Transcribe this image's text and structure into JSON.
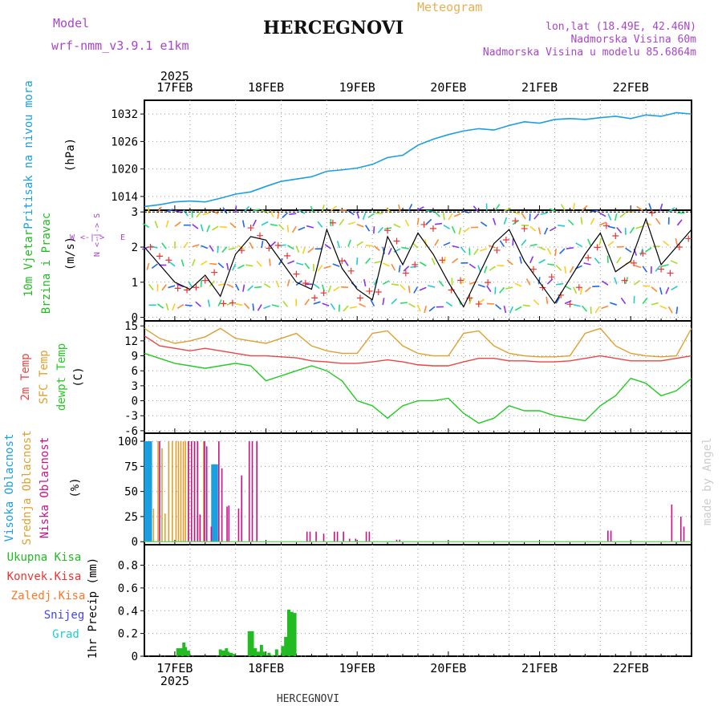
{
  "header": {
    "model_label": "Model",
    "model_name": "wrf-nmm_v3.9.1 e1km",
    "title": "HERCEGNOVI",
    "meteogram_label": "Meteogram",
    "coords": "lon,lat (18.49E, 42.46N)",
    "altitude": "Nadmorska Visina 60m",
    "model_altitude": "Nadmorska Visina u modelu 85.6864m",
    "footer": "HERCEGNOVI",
    "watermark": "made by Angel"
  },
  "colors": {
    "pressure": "#1a9fe0",
    "t2m": "#ee4444",
    "sfc": "#e0a030",
    "dewpt": "#22cc22",
    "high_cloud": "#1a9fe0",
    "mid_cloud": "#e0a030",
    "low_cloud": "#cc1188",
    "total_precip": "#22bb22",
    "conv_precip": "#ee3333",
    "frozen_precip": "#ff7722",
    "snow": "#4444ee",
    "hail": "#22cccc",
    "model_purple": "#aa44cc",
    "meteogram_orange": "#e8b050"
  },
  "chart_data": [
    {
      "id": "pressure",
      "type": "line",
      "ylabel_name": "Pritisak na nivou mora",
      "ylabel_unit": "(hPa)",
      "yticks": [
        1014,
        1020,
        1026,
        1032
      ],
      "ylim": [
        1011,
        1035
      ],
      "x": [
        0,
        0.5,
        1,
        1.5,
        2,
        2.5,
        3,
        3.5,
        4,
        4.5,
        5,
        5.5,
        6,
        6.5,
        7,
        7.5,
        8,
        8.5,
        9,
        9.5,
        10,
        10.5,
        11,
        11.5,
        12,
        12.5,
        13,
        13.5,
        14,
        14.5,
        15,
        15.5,
        16,
        16.5,
        17,
        17.5,
        18
      ],
      "values": [
        1011.8,
        1012.2,
        1012.8,
        1013.0,
        1012.8,
        1013.6,
        1014.5,
        1015.0,
        1016.2,
        1017.3,
        1017.8,
        1018.3,
        1019.5,
        1019.8,
        1020.2,
        1021.0,
        1022.5,
        1023.0,
        1025.2,
        1026.5,
        1027.5,
        1028.3,
        1028.8,
        1028.5,
        1029.5,
        1030.3,
        1030.0,
        1030.8,
        1031.0,
        1030.8,
        1031.2,
        1031.5,
        1031.0,
        1031.8,
        1031.5,
        1032.3,
        1032.0
      ]
    },
    {
      "id": "wind",
      "type": "line",
      "ylabel_name": "10m Vjetar",
      "ylabel_name2": "Brzina i Pravac",
      "ylabel_unit": "(m/s)",
      "compass": {
        "n": "N",
        "s": "S",
        "w": "W",
        "e": "E"
      },
      "yticks": [
        0,
        1,
        2,
        3
      ],
      "ylim": [
        -0.1,
        3.05
      ],
      "x": [
        0,
        0.5,
        1,
        1.5,
        2,
        2.5,
        3,
        3.5,
        4,
        4.5,
        5,
        5.5,
        6,
        6.5,
        7,
        7.5,
        8,
        8.5,
        9,
        9.5,
        10,
        10.5,
        11,
        11.5,
        12,
        12.5,
        13,
        13.5,
        14,
        14.5,
        15,
        15.5,
        16,
        16.5,
        17,
        17.5,
        18
      ],
      "values": [
        2.0,
        1.5,
        1.0,
        0.8,
        1.2,
        0.6,
        1.8,
        2.3,
        2.2,
        1.6,
        1.0,
        0.8,
        2.5,
        1.4,
        0.8,
        0.5,
        2.3,
        1.5,
        2.4,
        1.8,
        1.0,
        0.3,
        1.2,
        2.1,
        2.5,
        1.6,
        1.0,
        0.4,
        1.1,
        1.8,
        2.4,
        1.3,
        1.6,
        2.8,
        1.5,
        2.0,
        2.5
      ],
      "barb_rows": [
        0.35,
        0.9,
        1.5,
        2.0,
        2.6,
        3.0
      ]
    },
    {
      "id": "temperature",
      "type": "line",
      "ylabel_t2m": "2m Temp",
      "ylabel_sfc": "SFC Temp",
      "ylabel_dew": "dewpt Temp",
      "ylabel_unit": "(C)",
      "yticks": [
        -6,
        -3,
        0,
        3,
        6,
        9,
        12,
        15
      ],
      "ylim": [
        -6.5,
        16
      ],
      "x": [
        0,
        0.5,
        1,
        1.5,
        2,
        2.5,
        3,
        3.5,
        4,
        4.5,
        5,
        5.5,
        6,
        6.5,
        7,
        7.5,
        8,
        8.5,
        9,
        9.5,
        10,
        10.5,
        11,
        11.5,
        12,
        12.5,
        13,
        13.5,
        14,
        14.5,
        15,
        15.5,
        16,
        16.5,
        17,
        17.5,
        18
      ],
      "series": [
        {
          "id": "sfc",
          "values": [
            14.5,
            12.5,
            11.5,
            12.0,
            12.8,
            14.5,
            12.5,
            12.0,
            11.5,
            12.5,
            13.5,
            11.0,
            10.0,
            9.5,
            9.5,
            13.5,
            14.0,
            11.0,
            9.5,
            9.0,
            9.0,
            13.5,
            14.0,
            11.0,
            9.5,
            9.0,
            8.8,
            8.8,
            9.0,
            13.5,
            14.5,
            11.0,
            9.5,
            9.0,
            8.8,
            9.0,
            14.5
          ]
        },
        {
          "id": "t2m",
          "values": [
            13.0,
            11.0,
            10.5,
            10.0,
            10.5,
            10.0,
            9.5,
            9.0,
            9.0,
            8.8,
            8.6,
            8.0,
            7.8,
            7.5,
            7.5,
            7.8,
            8.2,
            7.8,
            7.2,
            7.0,
            7.0,
            7.8,
            8.5,
            8.5,
            8.0,
            8.0,
            7.8,
            7.8,
            8.0,
            8.5,
            9.0,
            8.5,
            8.0,
            8.0,
            8.0,
            8.5,
            9.0
          ]
        },
        {
          "id": "dewpt",
          "values": [
            9.5,
            8.5,
            7.5,
            7.0,
            6.5,
            7.0,
            7.5,
            7.0,
            4.0,
            5.0,
            6.0,
            7.0,
            6.0,
            4.0,
            0.0,
            -1.0,
            -3.5,
            -1.0,
            0.0,
            0.0,
            0.5,
            -2.5,
            -4.5,
            -3.5,
            -1.0,
            -2.0,
            -2.0,
            -3.0,
            -3.5,
            -4.0,
            -1.0,
            1.0,
            4.5,
            3.5,
            1.0,
            2.0,
            4.5
          ]
        }
      ]
    },
    {
      "id": "cloud",
      "type": "bar",
      "ylabel_high": "Visoka Oblacnost",
      "ylabel_mid": "Srednja Oblacnost",
      "ylabel_low": "Niska Oblacnost",
      "ylabel_unit": "(%)",
      "yticks": [
        0,
        25,
        50,
        75,
        100
      ],
      "ylim": [
        -3,
        108
      ],
      "series": [
        {
          "id": "high",
          "x": [
            0.04,
            0.12,
            0.2,
            2.25,
            2.31,
            2.37
          ],
          "values": [
            100,
            100,
            100,
            77,
            77,
            77
          ]
        },
        {
          "id": "mid",
          "x": [
            0.3,
            0.45,
            0.58,
            0.68,
            0.8,
            0.92,
            1.04,
            1.12,
            1.2,
            1.28,
            1.35,
            1.45,
            1.55,
            1.65,
            1.75,
            1.83,
            1.95,
            2.45
          ],
          "values": [
            33,
            100,
            93,
            28,
            100,
            100,
            100,
            100,
            100,
            100,
            100,
            100,
            100,
            100,
            100,
            27,
            100,
            5
          ]
        },
        {
          "id": "low",
          "x": [
            0.5,
            1.45,
            1.55,
            1.65,
            1.75,
            1.83,
            1.98,
            2.05,
            2.2,
            2.45,
            2.55,
            2.72,
            2.78,
            3.1,
            3.2,
            3.45,
            3.55,
            3.7,
            5.35,
            5.45,
            5.65,
            5.9,
            6.25,
            6.35,
            6.55,
            6.75,
            6.95,
            7.3,
            7.4,
            8.3,
            8.4,
            15.25,
            15.35,
            17.35,
            17.65,
            17.75
          ],
          "values": [
            100,
            100,
            100,
            100,
            100,
            27,
            100,
            95,
            15,
            100,
            73,
            35,
            36,
            33,
            66,
            100,
            100,
            100,
            10,
            10,
            10,
            8,
            10,
            10,
            10,
            3,
            3,
            10,
            10,
            2,
            2,
            11,
            11,
            37,
            25,
            15
          ]
        }
      ]
    },
    {
      "id": "precip",
      "type": "bar",
      "ylabel": "1hr Precip (mm)",
      "legend": [
        "Ukupna Kisa",
        "Konvek.Kisa",
        "Zaledj.Kisa",
        "Snijeg",
        "Grad"
      ],
      "yticks": [
        0,
        0.2,
        0.4,
        0.6,
        0.8
      ],
      "ylim": [
        0,
        0.98
      ],
      "x": [
        1.1,
        1.2,
        1.3,
        1.35,
        1.45,
        1.55,
        2.5,
        2.6,
        2.7,
        2.75,
        2.85,
        2.95,
        3.45,
        3.55,
        3.65,
        3.75,
        3.85,
        3.95,
        4.1,
        4.2,
        4.35,
        4.55,
        4.65,
        4.75,
        4.85,
        4.95,
        5.05
      ],
      "values": [
        0.07,
        0.07,
        0.12,
        0.08,
        0.05,
        0.0,
        0.06,
        0.05,
        0.07,
        0.04,
        0.03,
        0.02,
        0.22,
        0.22,
        0.07,
        0.04,
        0.1,
        0.04,
        0.03,
        0.01,
        0.06,
        0.09,
        0.17,
        0.41,
        0.39,
        0.38,
        0.0
      ]
    }
  ],
  "time_axis": {
    "year": "2025",
    "dates": [
      "17FEB",
      "18FEB",
      "19FEB",
      "20FEB",
      "21FEB",
      "22FEB"
    ],
    "date_positions": [
      1,
      4,
      7,
      10,
      13,
      16
    ],
    "range": [
      0,
      18
    ]
  }
}
